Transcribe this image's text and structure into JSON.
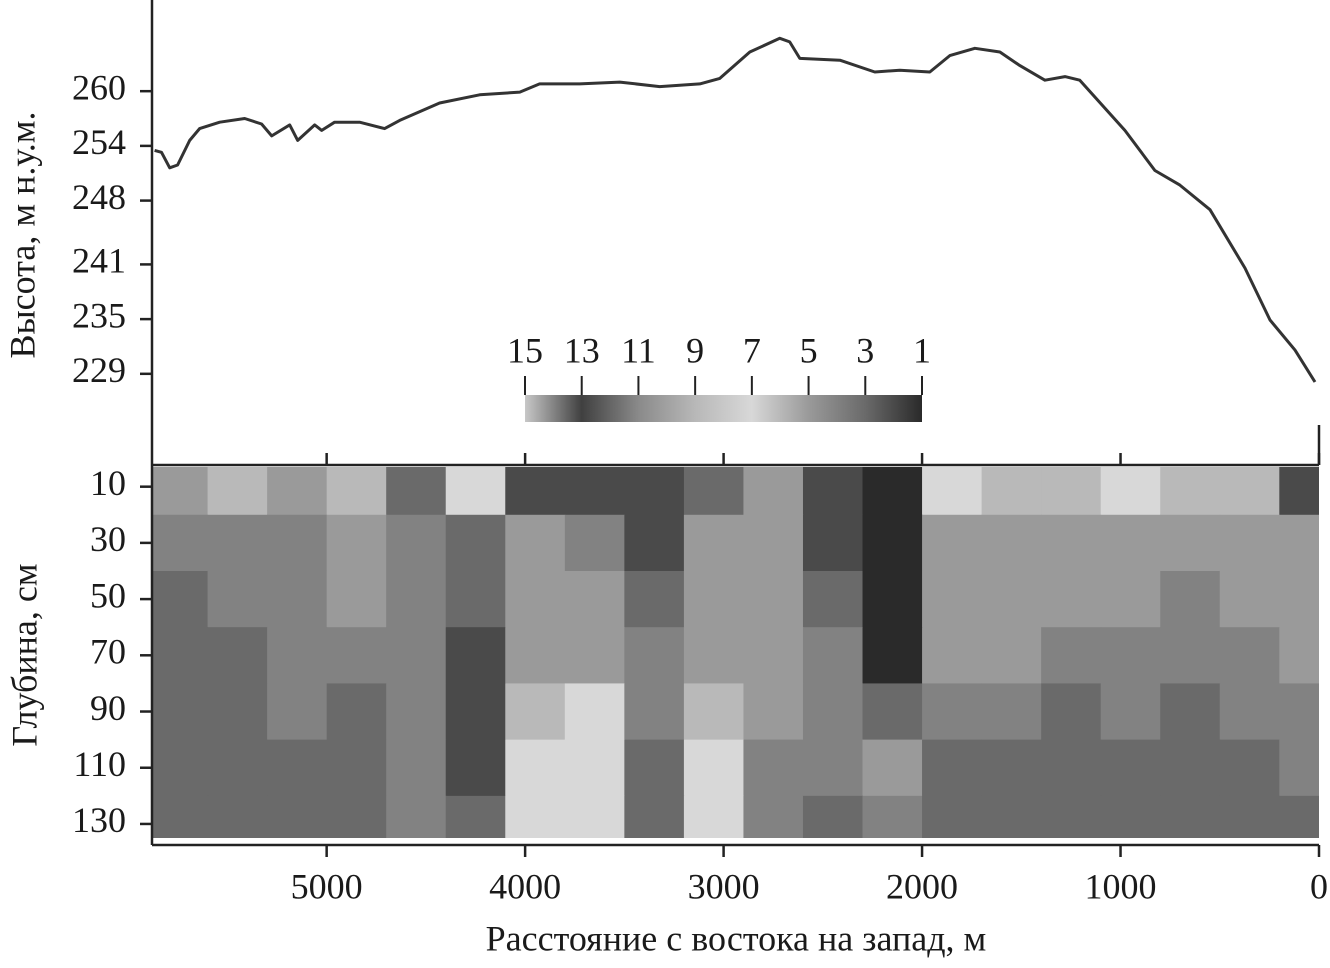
{
  "chart_data": [
    {
      "type": "line",
      "ylabel": "Высота, м н.у.м.",
      "x": [
        5867,
        5832,
        5791,
        5751,
        5690,
        5640,
        5539,
        5413,
        5328,
        5277,
        5186,
        5146,
        5060,
        5025,
        4960,
        4834,
        4708,
        4632,
        4431,
        4229,
        4027,
        3927,
        3725,
        3523,
        3322,
        3120,
        3019,
        2868,
        2717,
        2667,
        2616,
        2414,
        2238,
        2112,
        1961,
        1860,
        1734,
        1608,
        1507,
        1381,
        1280,
        1205,
        978,
        827,
        701,
        549,
        373,
        247,
        121,
        20
      ],
      "series": [
        {
          "color": "#333333",
          "values": [
            253.5,
            253.3,
            251.6,
            251.9,
            254.6,
            255.9,
            256.6,
            257.0,
            256.4,
            255.1,
            256.3,
            254.6,
            256.3,
            255.7,
            256.6,
            256.6,
            255.9,
            256.8,
            258.7,
            259.6,
            259.9,
            260.8,
            260.8,
            261.0,
            260.5,
            260.8,
            261.4,
            264.3,
            265.8,
            265.4,
            263.6,
            263.4,
            262.1,
            262.3,
            262.1,
            263.9,
            264.7,
            264.3,
            262.8,
            261.2,
            261.6,
            261.2,
            255.7,
            251.3,
            249.7,
            247.0,
            240.6,
            234.9,
            231.6,
            228.1
          ]
        }
      ],
      "xlim": [
        5880,
        0
      ],
      "xticks": [
        5000,
        4000,
        3000,
        2000,
        1000,
        0
      ],
      "ylim": [
        219,
        270
      ],
      "yticks": [
        229,
        235,
        241,
        248,
        254,
        260
      ]
    },
    {
      "type": "heatmap",
      "xlabel": "Расстояние с востока на запад, м",
      "ylabel": "Глубина, см",
      "x": [
        5750,
        5450,
        5150,
        4850,
        4550,
        4250,
        3950,
        3650,
        3350,
        3050,
        2750,
        2450,
        2150,
        1850,
        1550,
        1250,
        950,
        650,
        350,
        50
      ],
      "categories": [
        10,
        30,
        50,
        70,
        90,
        110,
        130
      ],
      "values": [
        [
          5,
          6,
          5,
          6,
          3,
          7,
          2,
          2,
          2,
          3,
          5,
          2,
          1,
          7,
          6,
          6,
          7,
          6,
          6,
          2
        ],
        [
          4,
          4,
          4,
          5,
          4,
          3,
          5,
          4,
          2,
          5,
          5,
          2,
          1,
          5,
          5,
          5,
          5,
          5,
          5,
          5
        ],
        [
          3,
          4,
          4,
          5,
          4,
          3,
          5,
          5,
          3,
          5,
          5,
          3,
          1,
          5,
          5,
          5,
          5,
          4,
          5,
          5
        ],
        [
          3,
          3,
          4,
          4,
          4,
          2,
          5,
          5,
          4,
          5,
          5,
          4,
          1,
          5,
          5,
          4,
          4,
          4,
          4,
          5
        ],
        [
          3,
          3,
          4,
          3,
          4,
          2,
          6,
          7,
          4,
          6,
          5,
          4,
          3,
          4,
          4,
          3,
          4,
          3,
          4,
          4
        ],
        [
          3,
          3,
          3,
          3,
          4,
          2,
          7,
          7,
          3,
          7,
          4,
          4,
          5,
          3,
          3,
          3,
          3,
          3,
          3,
          4
        ],
        [
          3,
          3,
          3,
          3,
          4,
          3,
          7,
          7,
          3,
          7,
          4,
          3,
          4,
          3,
          3,
          3,
          3,
          3,
          3,
          3
        ]
      ],
      "xlim": [
        5880,
        0
      ],
      "xticks": [
        5000,
        4000,
        3000,
        2000,
        1000,
        0
      ],
      "ylim": [
        3,
        135
      ],
      "yticks": [
        10,
        30,
        50,
        70,
        90,
        110,
        130
      ],
      "colorbar": {
        "ticks": [
          15,
          13,
          11,
          9,
          7,
          5,
          3,
          1
        ],
        "colors": [
          "#c8c8c8",
          "#404040",
          "#8a8a8a",
          "#b8b8b8",
          "#d8d8d8",
          "#9a9a9a",
          "#6a6a6a",
          "#2a2a2a"
        ]
      }
    }
  ]
}
